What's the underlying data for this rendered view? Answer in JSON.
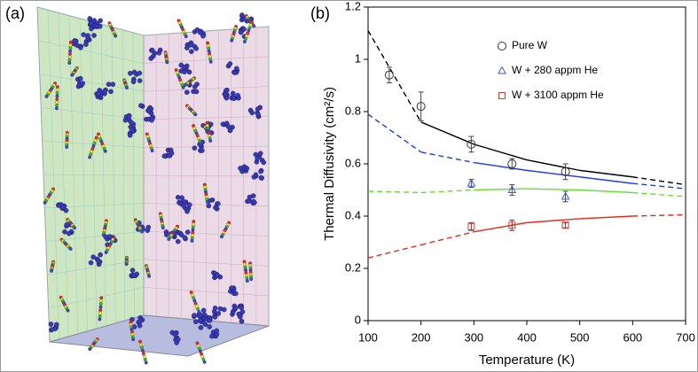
{
  "panel_a_label": "(a)",
  "chart_data": {
    "type": "scatter",
    "panel_label": "(b)",
    "xlabel": "Temperature (K)",
    "ylabel": "Thermal Diffusivity (cm²/s)",
    "xlim": [
      100,
      700
    ],
    "ylim": [
      0,
      1.2
    ],
    "xticks": [
      100,
      200,
      300,
      400,
      500,
      600,
      700
    ],
    "yticks": [
      0,
      0.2,
      0.4,
      0.6,
      0.8,
      1,
      1.2
    ],
    "series": [
      {
        "name": "Pure W",
        "color": "#333333",
        "marker": "circle",
        "x": [
          140,
          200,
          295,
          372,
          473
        ],
        "values": [
          0.94,
          0.82,
          0.675,
          0.6,
          0.57
        ],
        "errors": [
          0.03,
          0.055,
          0.03,
          0.02,
          0.03
        ]
      },
      {
        "name": "W + 280 appm He",
        "color": "#3b5bd6",
        "marker": "triangle",
        "x": [
          295,
          372,
          473
        ],
        "values": [
          0.525,
          0.5,
          0.475
        ],
        "errors": [
          0.015,
          0.02,
          0.02
        ]
      },
      {
        "name": "W + 3100 appm He",
        "color": "#d9402b",
        "marker": "square",
        "x": [
          295,
          372,
          473
        ],
        "values": [
          0.36,
          0.365,
          0.365
        ],
        "errors": [
          0.015,
          0.02,
          0.01
        ]
      }
    ],
    "lines": [
      {
        "color": "#000000",
        "x": [
          100,
          200,
          300,
          400,
          500,
          600,
          700
        ],
        "values": [
          1.11,
          0.76,
          0.675,
          0.615,
          0.575,
          0.55,
          0.52
        ],
        "solid_xlim": [
          200,
          600
        ]
      },
      {
        "color": "#1f3de0",
        "x": [
          100,
          200,
          300,
          400,
          500,
          600,
          700
        ],
        "values": [
          0.79,
          0.645,
          0.605,
          0.575,
          0.55,
          0.525,
          0.505
        ],
        "solid_xlim": [
          300,
          600
        ]
      },
      {
        "color": "#66dd33",
        "x": [
          100,
          200,
          300,
          400,
          500,
          600,
          700
        ],
        "values": [
          0.495,
          0.49,
          0.5,
          0.505,
          0.5,
          0.49,
          0.475
        ],
        "solid_xlim": [
          300,
          600
        ]
      },
      {
        "color": "#e02a1a",
        "x": [
          100,
          200,
          300,
          400,
          500,
          600,
          700
        ],
        "values": [
          0.24,
          0.29,
          0.34,
          0.375,
          0.39,
          0.4,
          0.405
        ],
        "solid_xlim": [
          300,
          600
        ]
      }
    ]
  }
}
